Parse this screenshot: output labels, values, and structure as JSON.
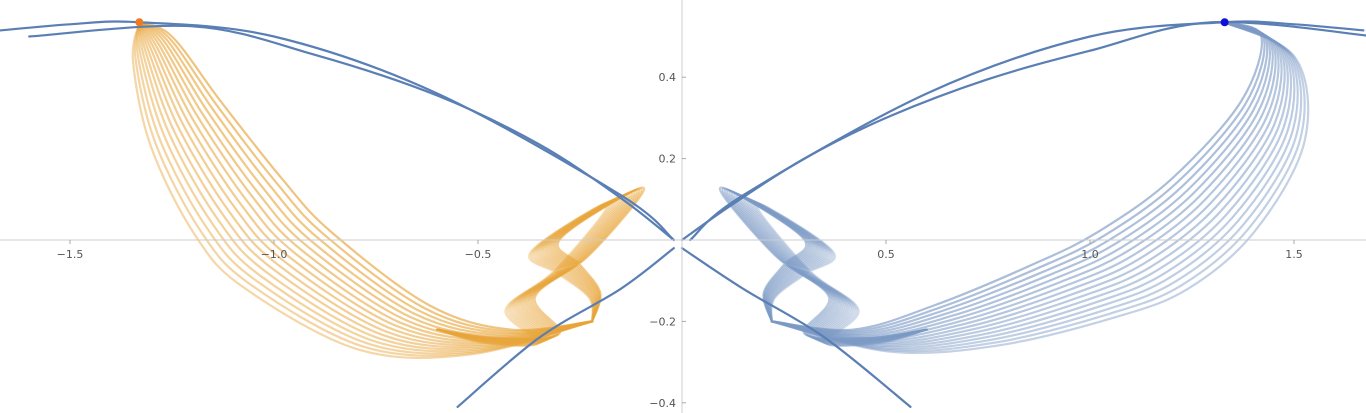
{
  "chart_data": {
    "type": "line",
    "title": "",
    "xlabel": "",
    "ylabel": "",
    "xlim": [
      -1.67,
      1.67
    ],
    "ylim": [
      -0.41,
      0.58
    ],
    "grid": false,
    "legend": "none",
    "x_ticks": [
      "-1.5",
      "-1.0",
      "-0.5",
      "0.5",
      "1.0",
      "1.5"
    ],
    "y_ticks": [
      "-0.4",
      "-0.2",
      "0.2",
      "0.4"
    ],
    "boundary_curves": {
      "color": "#5a7fb5",
      "right_branch": [
        [
          0.0,
          0.0
        ],
        [
          0.12,
          0.085
        ],
        [
          0.3,
          0.2
        ],
        [
          0.5,
          0.3
        ],
        [
          0.75,
          0.395
        ],
        [
          1.0,
          0.465
        ],
        [
          1.3,
          0.535
        ],
        [
          1.7,
          0.5
        ]
      ],
      "left_branch": [
        [
          -0.02,
          0.0
        ],
        [
          -0.15,
          0.103
        ],
        [
          -0.35,
          0.235
        ],
        [
          -0.6,
          0.355
        ],
        [
          -0.9,
          0.455
        ],
        [
          -1.2,
          0.525
        ],
        [
          -1.6,
          0.5
        ]
      ],
      "lower_right": [
        [
          0.0,
          -0.02
        ],
        [
          0.15,
          -0.12
        ],
        [
          0.35,
          -0.24
        ],
        [
          0.56,
          -0.41
        ]
      ],
      "lower_left": [
        [
          -0.02,
          -0.02
        ],
        [
          -0.15,
          -0.12
        ],
        [
          -0.35,
          -0.24
        ],
        [
          -0.55,
          -0.41
        ]
      ]
    },
    "series": [
      {
        "color": "#e8a53a",
        "marker": {
          "x": -1.33,
          "y": 0.535,
          "color": "#ee7a22"
        },
        "loop_count": 16,
        "main_loop": [
          [
            -1.33,
            0.535
          ],
          [
            -1.25,
            0.5
          ],
          [
            -1.13,
            0.34
          ],
          [
            -0.98,
            0.15
          ],
          [
            -0.86,
            0.02
          ],
          [
            -0.62,
            -0.16
          ],
          [
            -0.42,
            -0.22
          ],
          [
            -0.22,
            -0.2
          ]
        ],
        "right_loop": [
          [
            -0.22,
            -0.2
          ],
          [
            -0.2,
            -0.13
          ],
          [
            -0.25,
            -0.06
          ],
          [
            -0.3,
            -0.0
          ],
          [
            -0.13,
            0.115
          ],
          [
            -0.1,
            0.11
          ],
          [
            -0.23,
            -0.04
          ],
          [
            -0.36,
            -0.14
          ],
          [
            -0.3,
            -0.23
          ],
          [
            -0.46,
            -0.24
          ],
          [
            -0.6,
            -0.22
          ]
        ]
      },
      {
        "color": "#7c9ac5",
        "marker": {
          "x": 1.33,
          "y": 0.535,
          "color": "#1010d8"
        },
        "loop_count": 16,
        "main_loop": [
          [
            1.33,
            0.535
          ],
          [
            1.42,
            0.5
          ],
          [
            1.37,
            0.34
          ],
          [
            1.2,
            0.15
          ],
          [
            1.02,
            0.02
          ],
          [
            0.86,
            -0.06
          ],
          [
            0.62,
            -0.16
          ],
          [
            0.42,
            -0.22
          ],
          [
            0.22,
            -0.2
          ]
        ],
        "right_loop": [
          [
            0.22,
            -0.2
          ],
          [
            0.2,
            -0.13
          ],
          [
            0.25,
            -0.06
          ],
          [
            0.3,
            0.0
          ],
          [
            0.13,
            0.115
          ],
          [
            0.1,
            0.11
          ],
          [
            0.23,
            -0.04
          ],
          [
            0.36,
            -0.14
          ],
          [
            0.3,
            -0.23
          ],
          [
            0.46,
            -0.24
          ],
          [
            0.6,
            -0.22
          ]
        ]
      }
    ]
  }
}
